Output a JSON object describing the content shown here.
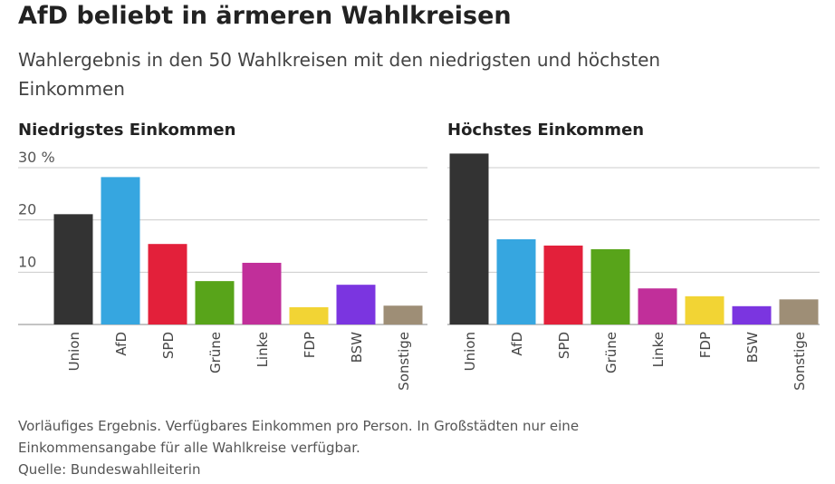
{
  "title": "AfD beliebt in ärmeren Wahlkreisen",
  "subtitle": "Wahlergebnis in den 50 Wahlkreisen mit den niedrigsten und höchsten Einkommen",
  "chart_data": [
    {
      "type": "bar",
      "title": "Niedrigstes Einkommen",
      "categories": [
        "Union",
        "AfD",
        "SPD",
        "Grüne",
        "Linke",
        "FDP",
        "BSW",
        "Sonstige"
      ],
      "values": [
        21.1,
        28.2,
        15.4,
        8.3,
        11.8,
        3.3,
        7.6,
        3.6
      ],
      "colors": [
        "#333333",
        "#36a6e0",
        "#e3203a",
        "#58a41a",
        "#c12f9a",
        "#f2d434",
        "#7b35e0",
        "#9e8e76"
      ],
      "ylim": [
        0,
        33
      ],
      "yticks": [
        0,
        {
          "value": 10,
          "label": "10"
        },
        {
          "value": 20,
          "label": "20"
        },
        {
          "value": 30,
          "label": "30 %"
        }
      ],
      "grid": true
    },
    {
      "type": "bar",
      "title": "Höchstes Einkommen",
      "categories": [
        "Union",
        "AfD",
        "SPD",
        "Grüne",
        "Linke",
        "FDP",
        "BSW",
        "Sonstige"
      ],
      "values": [
        32.7,
        16.3,
        15.1,
        14.4,
        6.9,
        5.4,
        3.5,
        4.8
      ],
      "colors": [
        "#333333",
        "#36a6e0",
        "#e3203a",
        "#58a41a",
        "#c12f9a",
        "#f2d434",
        "#7b35e0",
        "#9e8e76"
      ],
      "ylim": [
        0,
        33
      ],
      "yticks": [
        0,
        10,
        20,
        30
      ],
      "grid": true
    }
  ],
  "notes": [
    "Vorläufiges Ergebnis. Verfügbares Einkommen pro Person. In Großstädten nur eine Einkommensangabe für alle Wahlkreise verfügbar.",
    "Quelle: Bundeswahlleiterin"
  ]
}
